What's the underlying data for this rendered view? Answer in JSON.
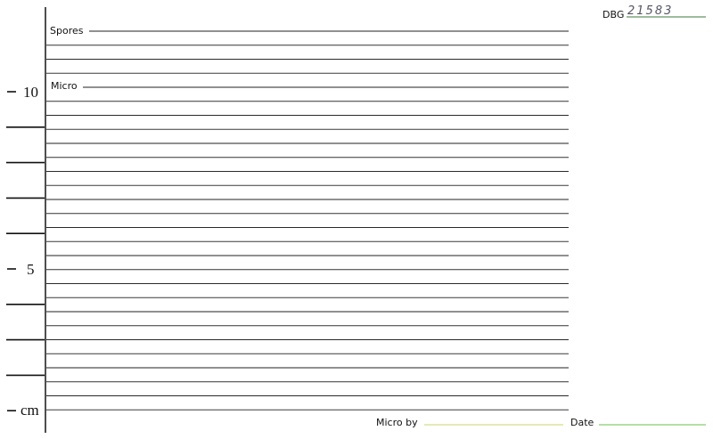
{
  "header": {
    "label": "DBG",
    "number": "21583"
  },
  "fields": {
    "spores": "Spores",
    "micro": "Micro",
    "micro_by": "Micro by",
    "date": "Date"
  },
  "scale": {
    "labels": [
      "10",
      "5",
      "cm"
    ]
  }
}
